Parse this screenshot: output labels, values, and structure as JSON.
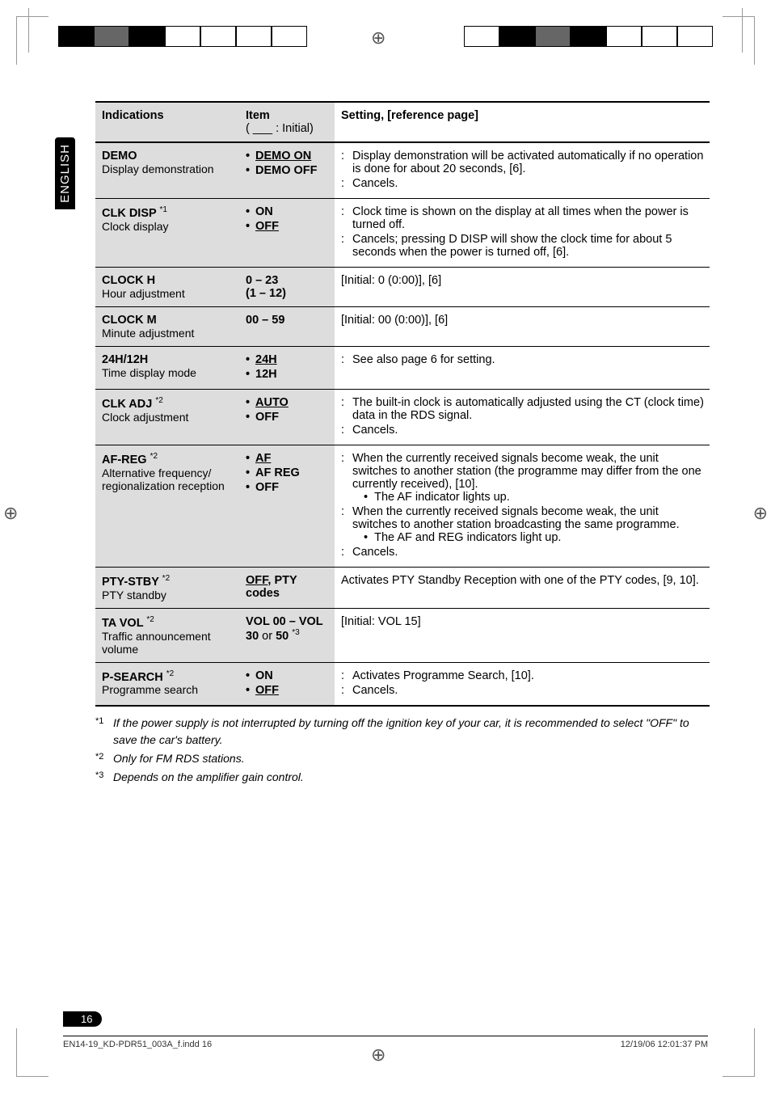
{
  "tab": "ENGLISH",
  "headers": {
    "col1": "Indications",
    "col2_line1": "Item",
    "col2_line2": "( ___ : Initial)",
    "col3": "Setting, [reference page]"
  },
  "rows": [
    {
      "ind_name": "DEMO",
      "ind_desc": "Display demonstration",
      "items": [
        {
          "label": "DEMO ON",
          "underlined": true
        },
        {
          "label": "DEMO OFF",
          "underlined": false
        }
      ],
      "settings": [
        "Display demonstration will be activated automatically if no operation is done for about 20 seconds, [6].",
        "Cancels."
      ]
    },
    {
      "ind_name": "CLK DISP",
      "ind_sup": "*1",
      "ind_desc": "Clock display",
      "items": [
        {
          "label": "ON",
          "underlined": false
        },
        {
          "label": "OFF",
          "underlined": true
        }
      ],
      "settings": [
        "Clock time is shown on the display at all times when the power is turned off.",
        "Cancels; pressing D DISP will show the clock time for about 5 seconds when the power is turned off, [6]."
      ]
    },
    {
      "ind_name": "CLOCK H",
      "ind_desc": "Hour adjustment",
      "item_plain1": "0 – 23",
      "item_plain2": "(1 – 12)",
      "setting_plain": "[Initial: 0 (0:00)], [6]"
    },
    {
      "ind_name": "CLOCK M",
      "ind_desc": "Minute adjustment",
      "item_plain1": "00 – 59",
      "setting_plain": "[Initial: 00 (0:00)], [6]"
    },
    {
      "ind_name": "24H/12H",
      "ind_desc": "Time display mode",
      "items": [
        {
          "label": "24H",
          "underlined": true
        },
        {
          "label": "12H",
          "underlined": false
        }
      ],
      "settings": [
        "See also page 6 for setting."
      ]
    },
    {
      "ind_name": "CLK ADJ",
      "ind_sup": "*2",
      "ind_desc": "Clock adjustment",
      "items": [
        {
          "label": "AUTO",
          "underlined": true
        },
        {
          "label": "OFF",
          "underlined": false
        }
      ],
      "settings": [
        "The built-in clock is automatically adjusted using the CT (clock time) data in the RDS signal.",
        "Cancels."
      ]
    },
    {
      "ind_name": "AF-REG",
      "ind_sup": "*2",
      "ind_desc": "Alternative frequency/ regionalization reception",
      "items": [
        {
          "label": "AF",
          "underlined": true
        },
        {
          "label": "AF REG",
          "underlined": false
        },
        {
          "label": "OFF",
          "underlined": false
        }
      ],
      "settings_complex": [
        {
          "main": "When the currently received signals become weak, the unit switches to another station (the programme may differ from the one currently received), [10].",
          "sub": "The AF indicator lights up."
        },
        {
          "main": "When the currently received signals become weak, the unit switches to another station broadcasting the same programme.",
          "sub": "The AF and REG indicators light up."
        },
        {
          "main": "Cancels."
        }
      ]
    },
    {
      "ind_name": "PTY-STBY",
      "ind_sup": "*2",
      "ind_desc": "PTY standby",
      "item_plain1_html": "<span class='u'>OFF</span>, PTY",
      "item_plain2": "codes",
      "setting_plain": "Activates PTY Standby Reception with one of the PTY codes, [9, 10]."
    },
    {
      "ind_name": "TA VOL",
      "ind_sup": "*2",
      "ind_desc": "Traffic announcement volume",
      "item_plain1": "VOL 00 – VOL",
      "item_plain2_html": "30 <span style='font-weight:normal'>or</span> 50 <span class='sup' style='font-weight:normal'>*3</span>",
      "setting_plain": "[Initial: VOL 15]"
    },
    {
      "ind_name": "P-SEARCH",
      "ind_sup": "*2",
      "ind_desc": "Programme search",
      "items": [
        {
          "label": "ON",
          "underlined": false
        },
        {
          "label": "OFF",
          "underlined": true
        }
      ],
      "settings": [
        "Activates Programme Search, [10].",
        "Cancels."
      ],
      "last": true
    }
  ],
  "footnotes": [
    {
      "mark": "*1",
      "text": "If the power supply is not interrupted by turning off the ignition key of your car, it is recommended to select \"OFF\" to save the car's battery."
    },
    {
      "mark": "*2",
      "text": "Only for FM RDS stations."
    },
    {
      "mark": "*3",
      "text": "Depends on the amplifier gain control."
    }
  ],
  "page_number": "16",
  "footer_left": "EN14-19_KD-PDR51_003A_f.indd   16",
  "footer_right": "12/19/06   12:01:37 PM"
}
